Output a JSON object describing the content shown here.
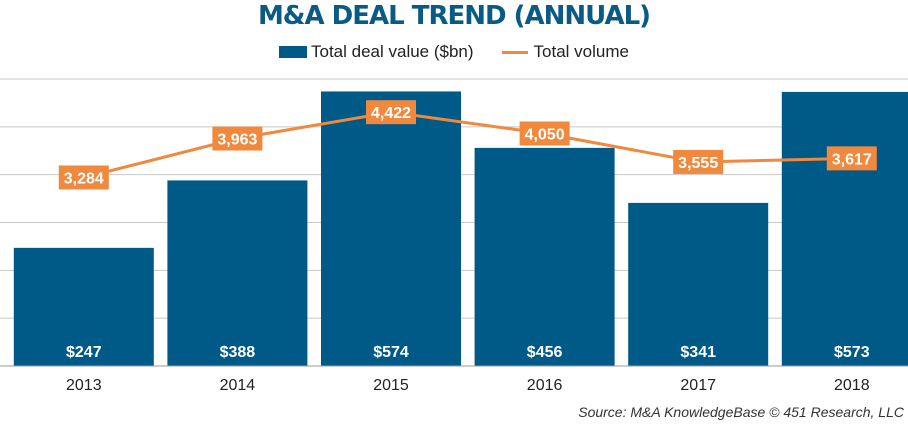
{
  "chart_data": {
    "type": "bar",
    "title": "M&A DEAL TREND (ANNUAL)",
    "categories": [
      "2013",
      "2014",
      "2015",
      "2016",
      "2017",
      "2018"
    ],
    "series": [
      {
        "name": "Total deal value ($bn)",
        "type": "bar",
        "values": [
          247,
          388,
          574,
          456,
          341,
          573
        ],
        "labels": [
          "$247",
          "$388",
          "$574",
          "$456",
          "$341",
          "$573"
        ],
        "color": "#005a87"
      },
      {
        "name": "Total volume",
        "type": "line",
        "values": [
          3284,
          3963,
          4422,
          4050,
          3555,
          3617
        ],
        "labels": [
          "3,284",
          "3,963",
          "4,422",
          "4,050",
          "3,555",
          "3,617"
        ],
        "color": "#f0883e"
      }
    ],
    "ylim": [
      0,
      600
    ],
    "y2lim": [
      0,
      5000
    ],
    "grid": true,
    "legend": "top"
  },
  "source": "Source: M&A KnowledgeBase © 451 Research, LLC",
  "colors": {
    "title": "#0a5a86",
    "grid": "#c8c8c8"
  }
}
